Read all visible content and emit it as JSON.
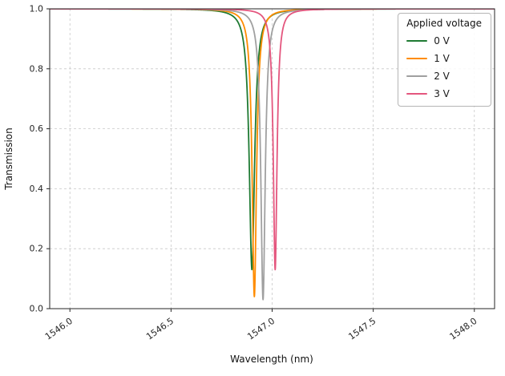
{
  "chart_data": {
    "type": "line",
    "title": "",
    "xlabel": "Wavelength (nm)",
    "ylabel": "Transmission",
    "xlim": [
      1545.9,
      1548.1
    ],
    "ylim": [
      0.0,
      1.0
    ],
    "x_ticks": [
      1546.0,
      1546.5,
      1547.0,
      1547.5,
      1548.0
    ],
    "y_ticks": [
      0.0,
      0.2,
      0.4,
      0.6,
      0.8,
      1.0
    ],
    "grid": true,
    "grid_style": "dashed",
    "legend_title": "Applied voltage",
    "legend_position": "upper right",
    "curve_model": "lorentzian_dip",
    "series": [
      {
        "name": "0 V",
        "color": "#1f7a33",
        "center_nm": 1546.9,
        "min_transmission": 0.13,
        "hwhm_nm": 0.016
      },
      {
        "name": "1 V",
        "color": "#ff8c00",
        "center_nm": 1546.912,
        "min_transmission": 0.04,
        "hwhm_nm": 0.013
      },
      {
        "name": "2 V",
        "color": "#a0a0a0",
        "center_nm": 1546.955,
        "min_transmission": 0.03,
        "hwhm_nm": 0.013
      },
      {
        "name": "3 V",
        "color": "#e4567e",
        "center_nm": 1547.015,
        "min_transmission": 0.13,
        "hwhm_nm": 0.011
      }
    ]
  }
}
